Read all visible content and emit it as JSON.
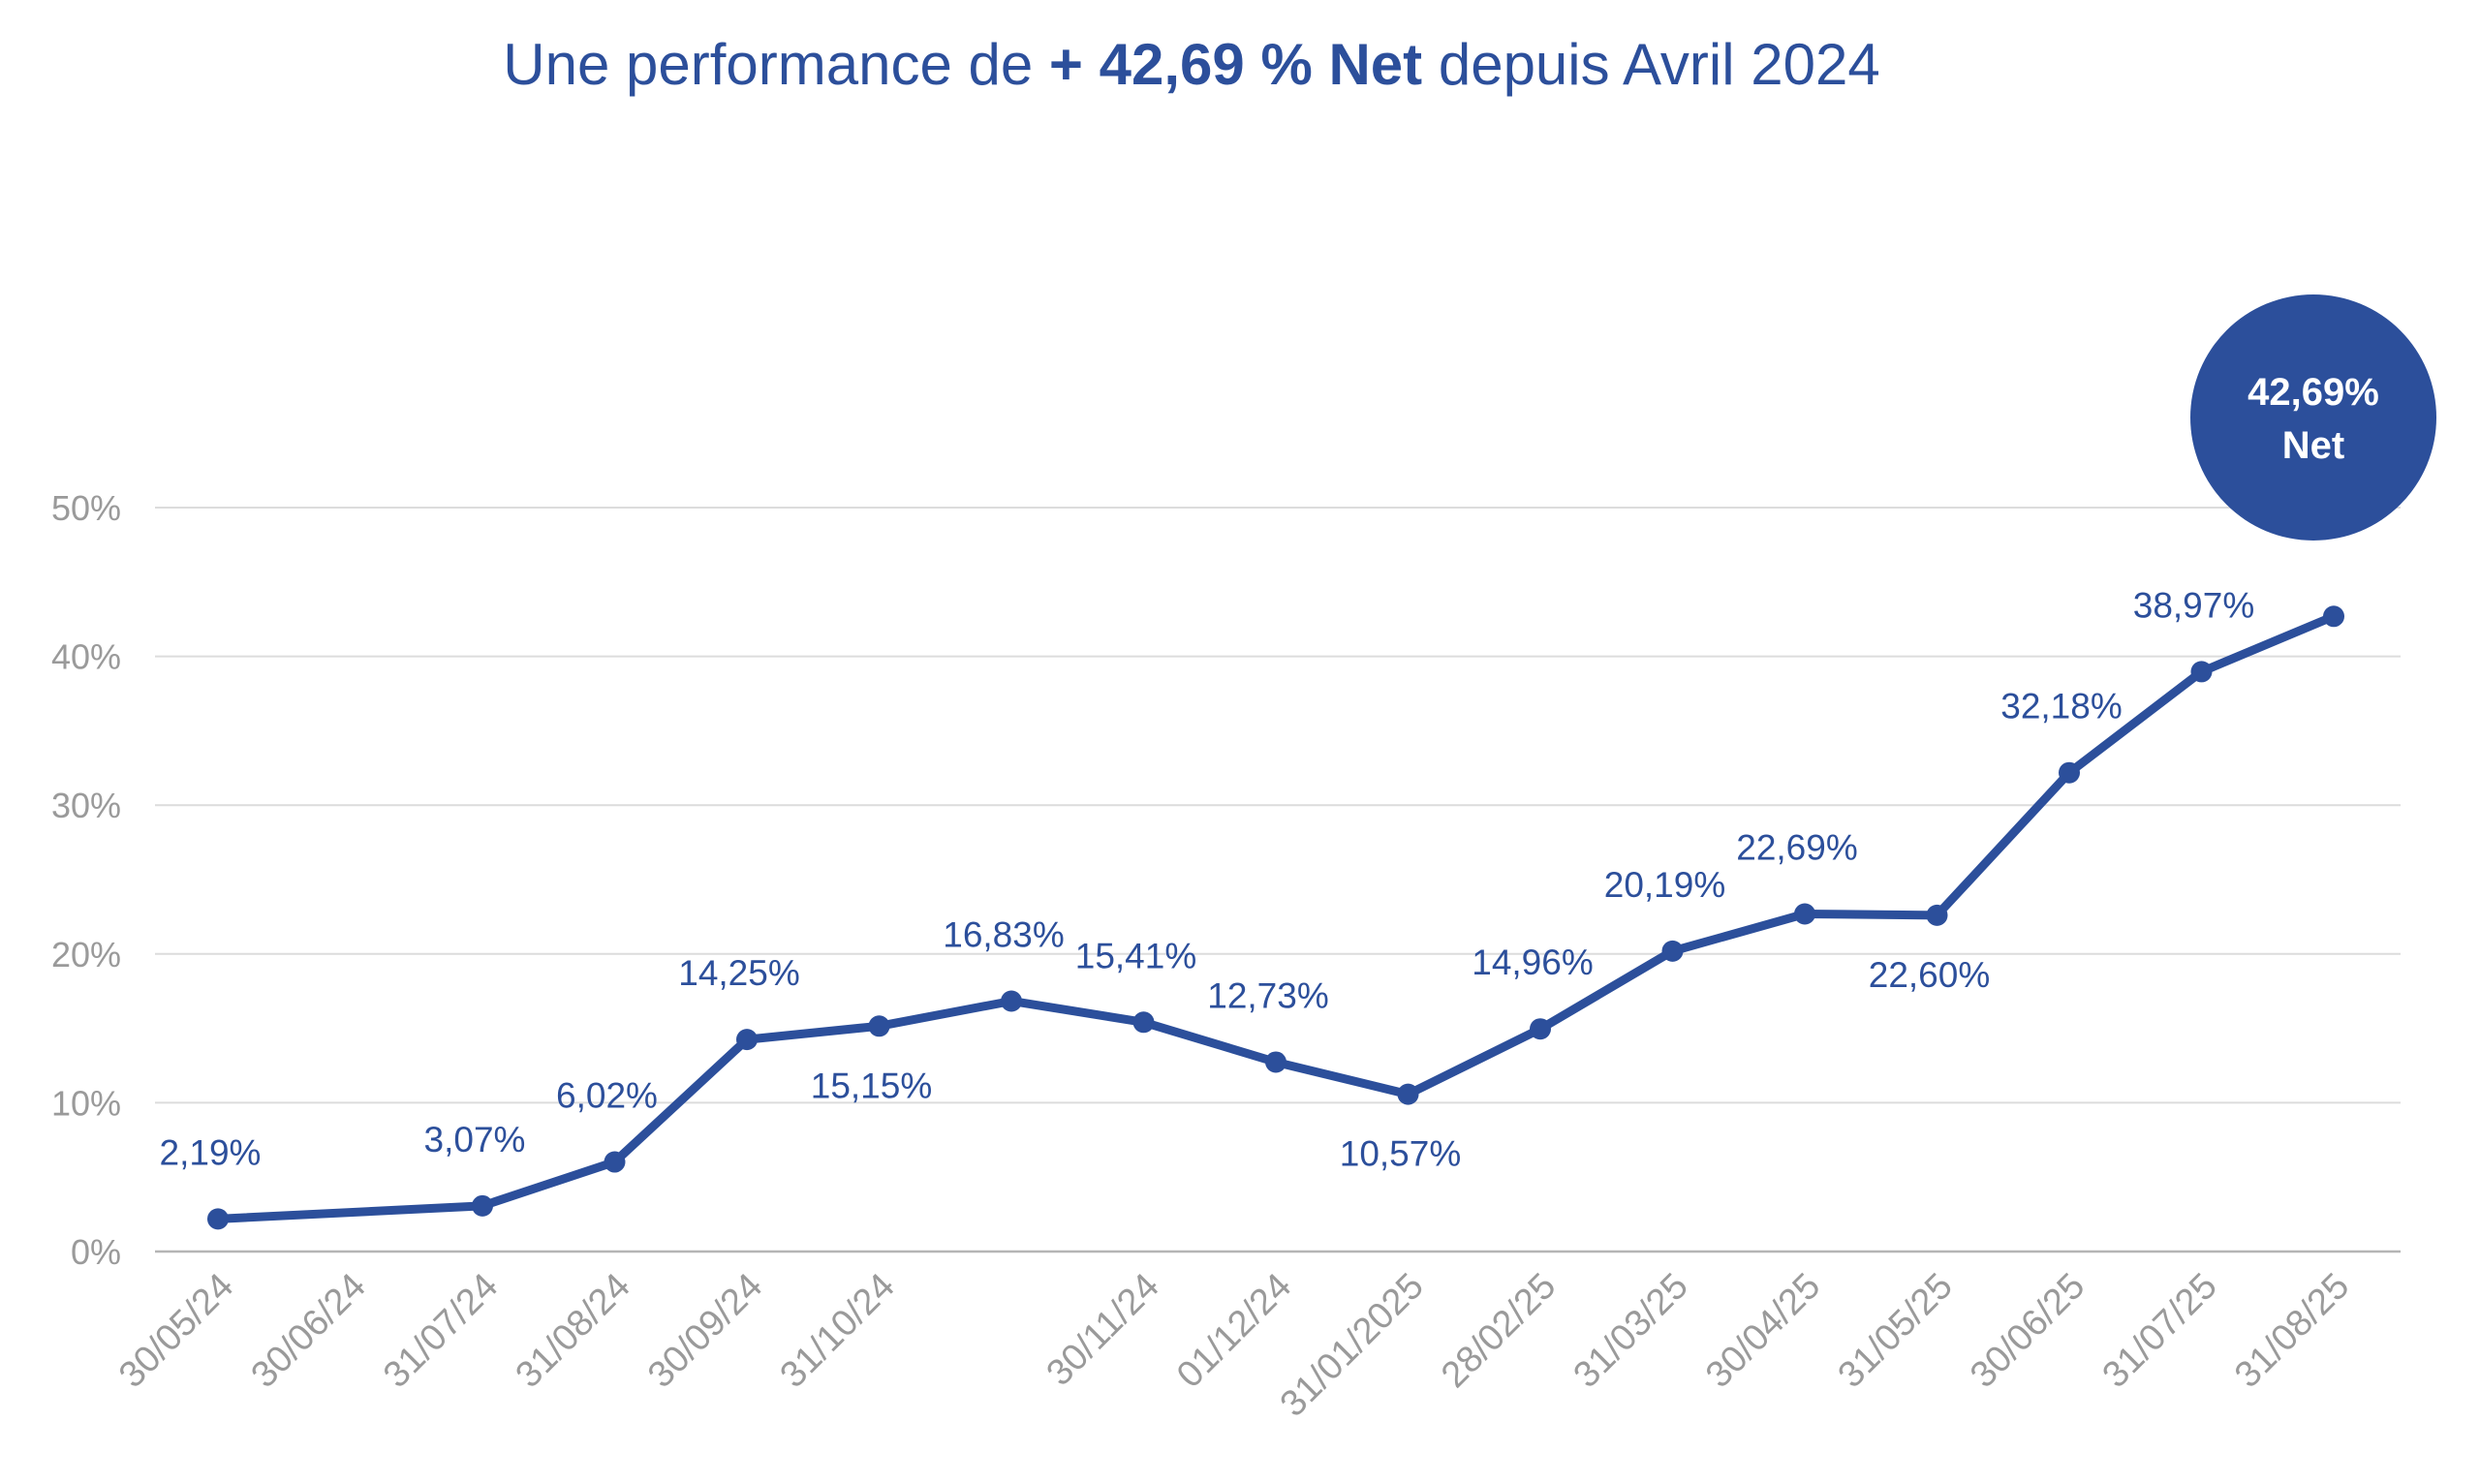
{
  "title": {
    "prefix": "Une performance de ",
    "highlight": "+ 42,69 % Net",
    "suffix": " depuis Avril 2024"
  },
  "badge": {
    "line1": "42,69%",
    "line2": "Net"
  },
  "colors": {
    "line": "#2c4f9b",
    "grid": "#dcdcdc",
    "axis": "#b5b5b5",
    "text_muted": "#9a9a9a"
  },
  "chart_data": {
    "type": "line",
    "ylim": [
      0,
      50
    ],
    "yticks": [
      "0%",
      "10%",
      "20%",
      "30%",
      "40%",
      "50%"
    ],
    "grid": true,
    "x_tick_labels": [
      "30/05/24",
      "30/06/24",
      "31/07/24",
      "31/08/24",
      "30/09/24",
      "31/10/24",
      "",
      "30/11/24",
      "01/12/24",
      "31/01/2025",
      "28/02/25",
      "31/03/25",
      "30/04/25",
      "31/05/25",
      "30/06/25",
      "31/07/25",
      "31/08/25"
    ],
    "points": [
      {
        "slot": 0,
        "value": 2.19,
        "label": "2,19%",
        "pos": "above"
      },
      {
        "slot": 2,
        "value": 3.07,
        "label": "3,07%",
        "pos": "above"
      },
      {
        "slot": 3,
        "value": 6.02,
        "label": "6,02%",
        "pos": "above"
      },
      {
        "slot": 4,
        "value": 14.25,
        "label": "14,25%",
        "pos": "above"
      },
      {
        "slot": 5,
        "value": 15.15,
        "label": "15,15%",
        "pos": "below"
      },
      {
        "slot": 6,
        "value": 16.83,
        "label": "16,83%",
        "pos": "above"
      },
      {
        "slot": 7,
        "value": 15.41,
        "label": "15,41%",
        "pos": "above"
      },
      {
        "slot": 8,
        "value": 12.73,
        "label": "12,73%",
        "pos": "above"
      },
      {
        "slot": 9,
        "value": 10.57,
        "label": "10,57%",
        "pos": "below"
      },
      {
        "slot": 10,
        "value": 14.96,
        "label": "14,96%",
        "pos": "above"
      },
      {
        "slot": 11,
        "value": 20.19,
        "label": "20,19%",
        "pos": "above"
      },
      {
        "slot": 12,
        "value": 22.69,
        "label": "22,69%",
        "pos": "above"
      },
      {
        "slot": 13,
        "value": 22.6,
        "label": "22,60%",
        "pos": "below"
      },
      {
        "slot": 14,
        "value": 32.18,
        "label": "32,18%",
        "pos": "above"
      },
      {
        "slot": 15,
        "value": 38.97,
        "label": "38,97%",
        "pos": "above"
      },
      {
        "slot": 16,
        "value": 42.69,
        "label": "",
        "pos": "above"
      }
    ]
  }
}
